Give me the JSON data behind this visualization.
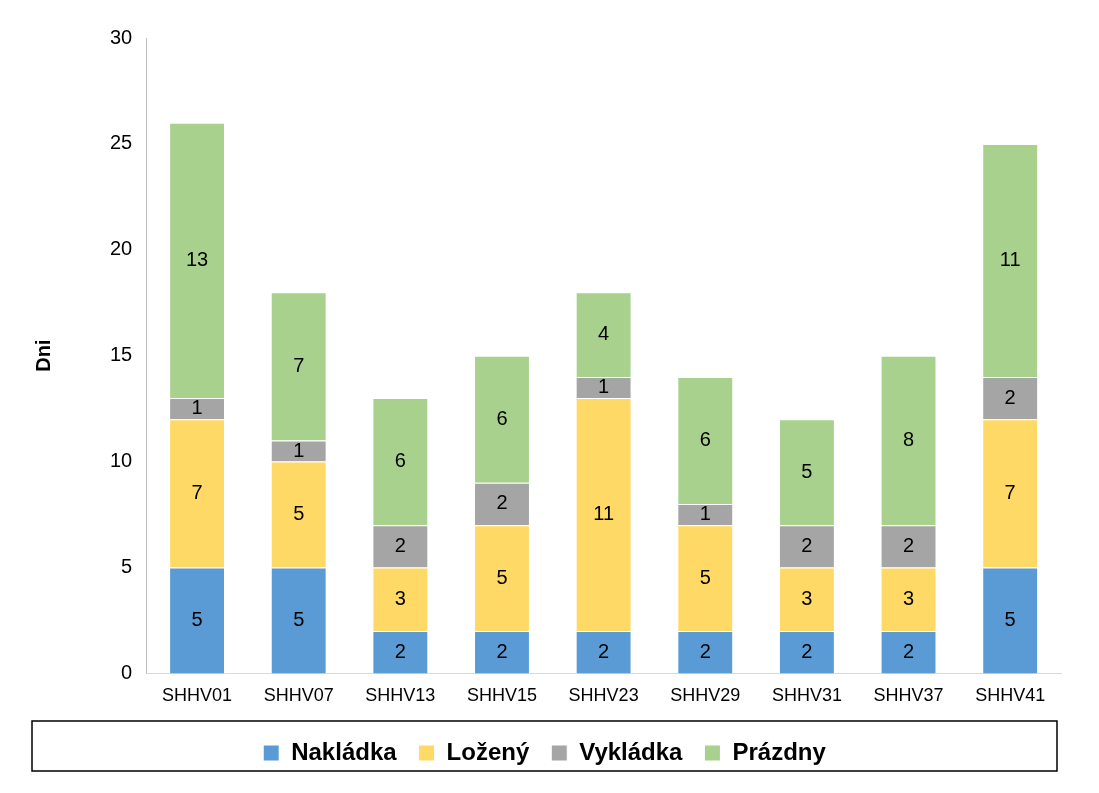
{
  "chart_data": {
    "type": "bar",
    "stacked": true,
    "ylabel": "Dni",
    "categories": [
      "SHHV01",
      "SHHV07",
      "SHHV13",
      "SHHV15",
      "SHHV23",
      "SHHV29",
      "SHHV31",
      "SHHV37",
      "SHHV41"
    ],
    "series": [
      {
        "name": "Nakládka",
        "color": "#5b9bd5",
        "values": [
          5,
          5,
          2,
          2,
          2,
          2,
          2,
          2,
          5
        ]
      },
      {
        "name": "Ložený",
        "color": "#ffd966",
        "values": [
          7,
          5,
          3,
          5,
          11,
          5,
          3,
          3,
          7
        ]
      },
      {
        "name": "Vykládka",
        "color": "#a5a5a5",
        "values": [
          1,
          1,
          2,
          2,
          1,
          1,
          2,
          2,
          2
        ]
      },
      {
        "name": "Prázdny",
        "color": "#a9d18e",
        "values": [
          13,
          7,
          6,
          6,
          4,
          6,
          5,
          8,
          11
        ]
      }
    ],
    "ylim": [
      0,
      30
    ],
    "yticks": [
      0,
      5,
      10,
      15,
      20,
      25,
      30
    ],
    "grid": false,
    "legend": "bottom",
    "data_labels": true
  }
}
